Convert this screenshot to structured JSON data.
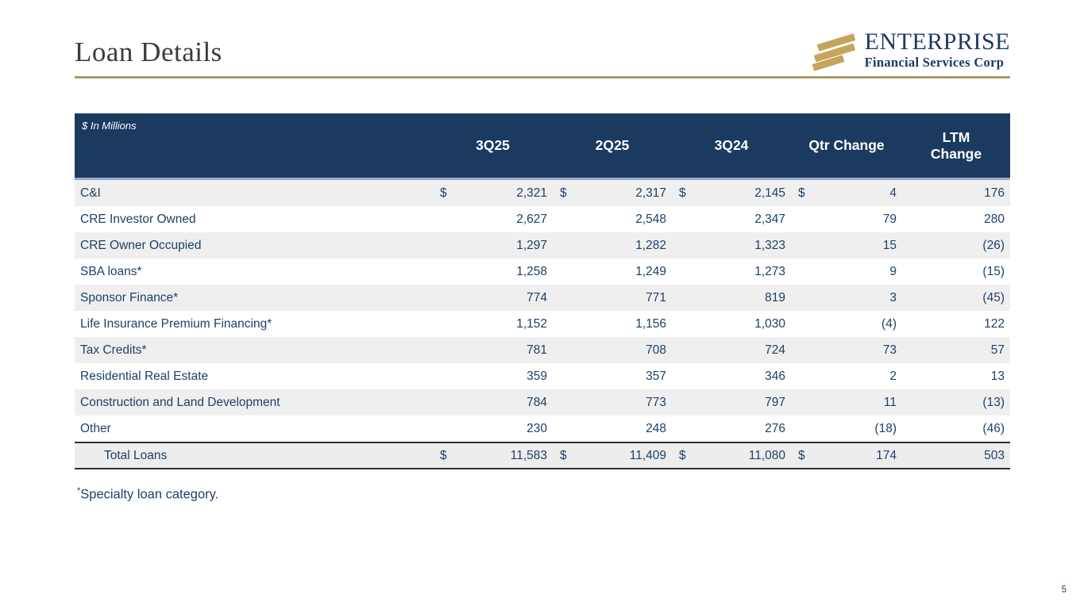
{
  "slide": {
    "title": "Loan Details",
    "page_number": "5"
  },
  "logo": {
    "name": "ENTERPRISE",
    "subtitle": "Financial Services Corp",
    "icon": "three-gold-diagonal-stripes"
  },
  "colors": {
    "accent_gold": "#ae9b64",
    "logo_gold": "#c5a45c",
    "header_navy": "#1b3a60",
    "text_navy": "#1f4068",
    "row_alt_gray": "#efefef"
  },
  "table": {
    "note": "$ In Millions",
    "currency_symbol": "$",
    "columns": [
      "3Q25",
      "2Q25",
      "3Q24",
      "Qtr Change",
      "LTM Change"
    ],
    "rows": [
      {
        "label": "C&I",
        "values": [
          "2,321",
          "2,317",
          "2,145",
          "4",
          "176"
        ]
      },
      {
        "label": "CRE Investor Owned",
        "values": [
          "2,627",
          "2,548",
          "2,347",
          "79",
          "280"
        ]
      },
      {
        "label": "CRE Owner Occupied",
        "values": [
          "1,297",
          "1,282",
          "1,323",
          "15",
          "(26)"
        ]
      },
      {
        "label": "SBA loans*",
        "values": [
          "1,258",
          "1,249",
          "1,273",
          "9",
          "(15)"
        ]
      },
      {
        "label": "Sponsor Finance*",
        "values": [
          "774",
          "771",
          "819",
          "3",
          "(45)"
        ]
      },
      {
        "label": "Life Insurance Premium Financing*",
        "values": [
          "1,152",
          "1,156",
          "1,030",
          "(4)",
          "122"
        ]
      },
      {
        "label": "Tax Credits*",
        "values": [
          "781",
          "708",
          "724",
          "73",
          "57"
        ]
      },
      {
        "label": "Residential Real Estate",
        "values": [
          "359",
          "357",
          "346",
          "2",
          "13"
        ]
      },
      {
        "label": "Construction and Land Development",
        "values": [
          "784",
          "773",
          "797",
          "11",
          "(13)"
        ]
      },
      {
        "label": "Other",
        "values": [
          "230",
          "248",
          "276",
          "(18)",
          "(46)"
        ]
      }
    ],
    "total": {
      "label": "Total Loans",
      "values": [
        "11,583",
        "11,409",
        "11,080",
        "174",
        "503"
      ]
    }
  },
  "footnote": {
    "marker": "*",
    "text": "Specialty loan category."
  }
}
